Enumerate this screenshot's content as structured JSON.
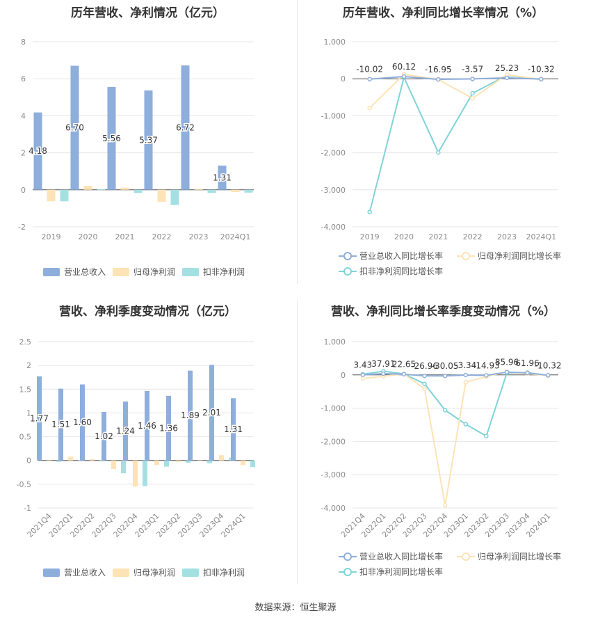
{
  "colors": {
    "revenue": "#8eaedc",
    "parent_net": "#fde3b6",
    "deducted_net": "#a4e0e2",
    "rev_growth": "#8eaedc",
    "parent_growth": "#fde3b6",
    "deducted_growth": "#7fd3d8",
    "grid": "#e6e6ea",
    "axis_text": "#8a8a8a",
    "label_text": "#333333"
  },
  "footer": "数据来源：恒生聚源",
  "chart_data": [
    {
      "id": "annual-bar",
      "type": "bar",
      "title": "历年营收、净利情况（亿元）",
      "categories": [
        "2019",
        "2020",
        "2021",
        "2022",
        "2023",
        "2024Q1"
      ],
      "ylim": [
        -2,
        8
      ],
      "yticks": [
        "-2",
        "0",
        "2",
        "4",
        "6",
        "8"
      ],
      "series": [
        {
          "name": "营业总收入",
          "values": [
            4.18,
            6.7,
            5.56,
            5.37,
            6.72,
            1.31
          ],
          "labels": [
            "4.18",
            "6.70",
            "5.56",
            "5.37",
            "6.72",
            "1.31"
          ]
        },
        {
          "name": "归母净利润",
          "values": [
            -0.62,
            0.22,
            0.12,
            -0.65,
            0.05,
            -0.12
          ]
        },
        {
          "name": "扣非净利润",
          "values": [
            -0.62,
            0.02,
            -0.17,
            -0.82,
            -0.17,
            -0.15
          ]
        }
      ]
    },
    {
      "id": "annual-line",
      "type": "line",
      "title": "历年营收、净利同比增长率情况（%）",
      "categories": [
        "2019",
        "2020",
        "2021",
        "2022",
        "2023",
        "2024Q1"
      ],
      "ylim": [
        -4000,
        1000
      ],
      "yticks": [
        "-4,000",
        "-3,000",
        "-2,000",
        "-1,000",
        "0",
        "1,000"
      ],
      "series": [
        {
          "name": "营业总收入同比增长率",
          "values": [
            -10.02,
            60.12,
            -16.95,
            -3.57,
            25.23,
            -10.32
          ],
          "labels": [
            "-10.02",
            "60.12",
            "-16.95",
            "-3.57",
            "25.23",
            "-10.32"
          ]
        },
        {
          "name": "归母净利润同比增长率",
          "values": [
            -790,
            120,
            -20,
            -530,
            110,
            -20
          ]
        },
        {
          "name": "扣非净利润同比增长率",
          "values": [
            -3600,
            40,
            -1990,
            -390,
            90,
            -15
          ]
        }
      ]
    },
    {
      "id": "quarter-bar",
      "type": "bar",
      "title": "营收、净利季度变动情况（亿元）",
      "categories": [
        "2021Q4",
        "2022Q1",
        "2022Q2",
        "2022Q3",
        "2022Q4",
        "2023Q1",
        "2023Q2",
        "2023Q3",
        "2023Q4",
        "2024Q1"
      ],
      "ylim": [
        -1,
        2.5
      ],
      "yticks": [
        "-1",
        "-0.5",
        "0",
        "0.5",
        "1",
        "1.5",
        "2",
        "2.5"
      ],
      "series": [
        {
          "name": "营业总收入",
          "values": [
            1.77,
            1.51,
            1.6,
            1.02,
            1.24,
            1.46,
            1.36,
            1.89,
            2.01,
            1.31
          ],
          "labels": [
            "1.77",
            "1.51",
            "1.60",
            "1.02",
            "1.24",
            "1.46",
            "1.36",
            "1.89",
            "2.01",
            "1.31"
          ]
        },
        {
          "name": "归母净利润",
          "values": [
            -0.02,
            0.08,
            0.03,
            -0.18,
            -0.55,
            -0.1,
            -0.03,
            -0.02,
            0.11,
            -0.1
          ]
        },
        {
          "name": "扣非净利润",
          "values": [
            -0.03,
            0.01,
            0.01,
            -0.27,
            -0.54,
            -0.13,
            -0.05,
            -0.06,
            0.06,
            -0.14
          ]
        }
      ]
    },
    {
      "id": "quarter-line",
      "type": "line",
      "title": "营收、净利同比增长率季度变动情况（%）",
      "categories": [
        "2021Q4",
        "2022Q1",
        "2022Q2",
        "2022Q3",
        "2022Q4",
        "2023Q1",
        "2023Q2",
        "2023Q3",
        "2023Q4",
        "2024Q1"
      ],
      "ylim": [
        -4000,
        1000
      ],
      "yticks": [
        "-4,000",
        "-3,000",
        "-2,000",
        "-1,000",
        "0",
        "1,000"
      ],
      "series": [
        {
          "name": "营业总收入同比增长率",
          "values": [
            3.43,
            37.91,
            22.65,
            -26.96,
            -30.05,
            -3.34,
            -14.93,
            85.96,
            61.96,
            -10.32
          ],
          "labels": [
            "3.43",
            "37.91",
            "22.65",
            "-26.96",
            "-30.05",
            "-3.34",
            "-14.93",
            "85.96",
            "61.96",
            "-10.32"
          ]
        },
        {
          "name": "归母净利润同比增长率",
          "values": [
            -110,
            -40,
            30,
            -420,
            -3920,
            -220,
            -50,
            90,
            40,
            -20
          ]
        },
        {
          "name": "扣非净利润同比增长率",
          "values": [
            20,
            110,
            30,
            -270,
            -1060,
            -1480,
            -1840,
            60,
            70,
            -20
          ]
        }
      ]
    }
  ]
}
